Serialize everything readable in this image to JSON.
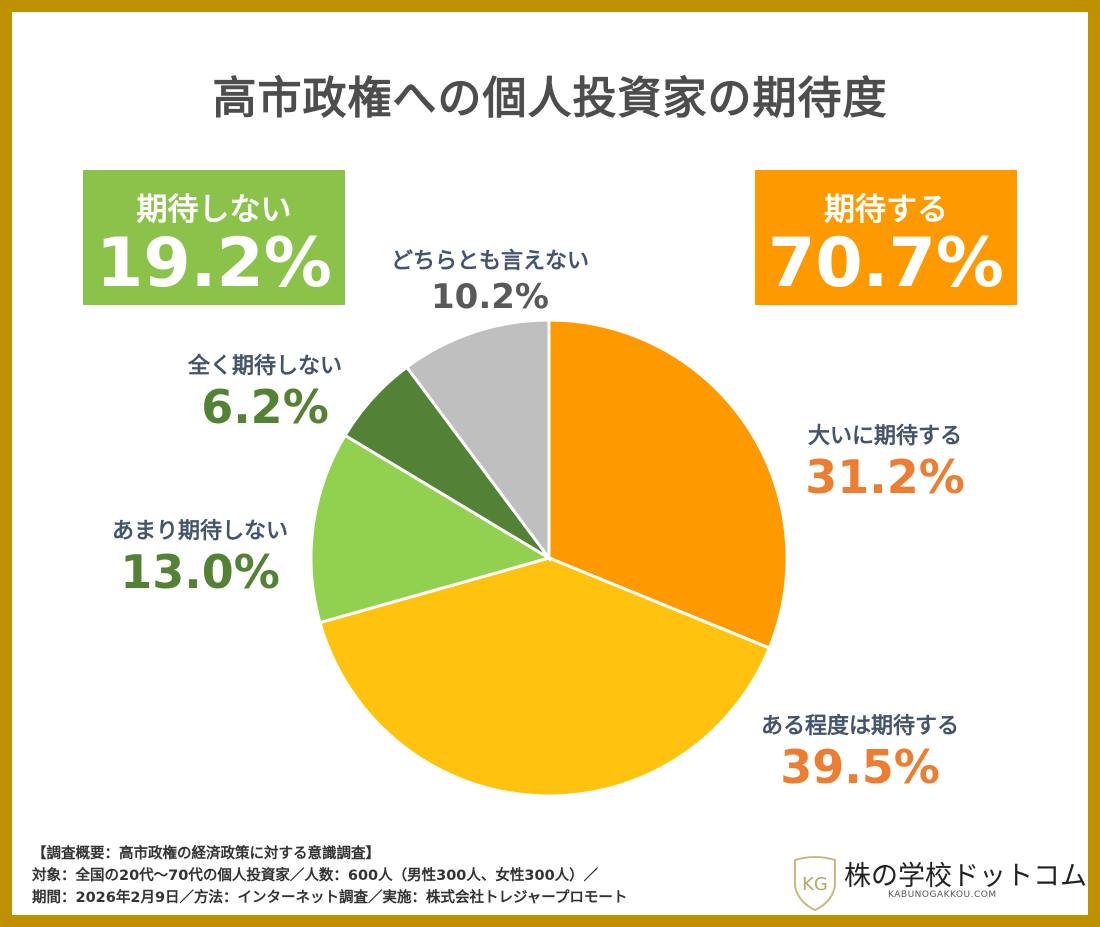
{
  "title": "高市政権への個人投資家の期待度",
  "summary": {
    "negative": {
      "label": "期待しない",
      "value": "19.2%",
      "color": "#8BC34A"
    },
    "positive": {
      "label": "期待する",
      "value": "70.7%",
      "color": "#FF9900"
    }
  },
  "chart_data": {
    "type": "pie",
    "title": "高市政権への個人投資家の期待度",
    "start": "12 o'clock, clockwise",
    "slices": [
      {
        "label": "大いに期待する",
        "value": 31.2,
        "display": "31.2%",
        "color": "#FF9900",
        "text_color": "#ED7D31"
      },
      {
        "label": "ある程度は期待する",
        "value": 39.5,
        "display": "39.5%",
        "color": "#FFC20E",
        "text_color": "#ED7D31"
      },
      {
        "label": "あまり期待しない",
        "value": 13.0,
        "display": "13.0%",
        "color": "#92D050",
        "text_color": "#548235"
      },
      {
        "label": "全く期待しない",
        "value": 6.2,
        "display": "6.2%",
        "color": "#538135",
        "text_color": "#548235"
      },
      {
        "label": "どちらとも言えない",
        "value": 10.2,
        "display": "10.2%",
        "color": "#BFBFBF",
        "text_color": "#595959"
      }
    ]
  },
  "footer": {
    "line1": "【調査概要：高市政権の経済政策に対する意識調査】",
    "line2": "対象：全国の20代〜70代の個人投資家／人数：600人（男性300人、女性300人）／",
    "line3": "期間：2026年2月9日／方法：インターネット調査／実施：株式会社トレジャープロモート"
  },
  "logo": {
    "mark": "KG",
    "name": "株の学校ドットコム",
    "url": "KABUNOGAKKOU.COM"
  }
}
